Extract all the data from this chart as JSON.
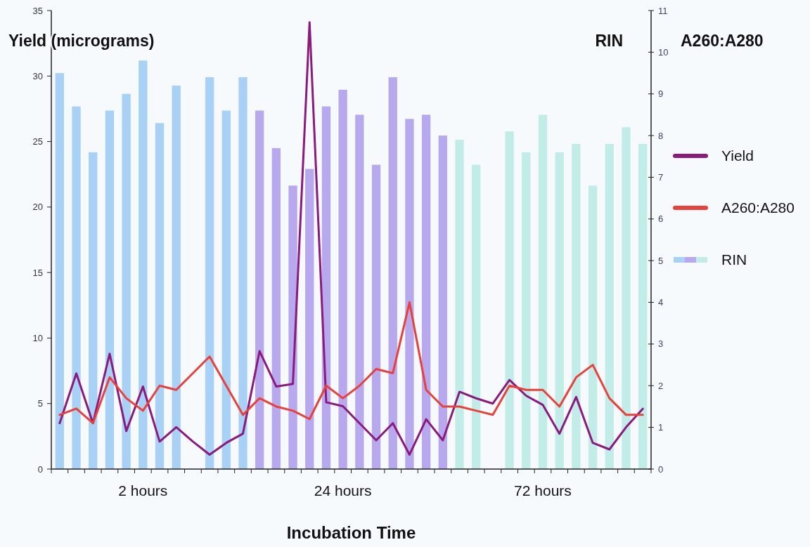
{
  "chart_data": {
    "type": "bar",
    "ylabel": "Yield (micrograms)",
    "y2label": "RIN",
    "xlabel": "Incubation Time",
    "annotations": [
      "A260:A280"
    ],
    "categories": [
      null,
      null,
      null,
      null,
      null,
      "2 hours",
      null,
      null,
      null,
      null,
      null,
      null,
      null,
      null,
      null,
      null,
      null,
      "24 hours",
      null,
      null,
      null,
      null,
      null,
      null,
      null,
      null,
      null,
      null,
      null,
      "72 hours",
      null,
      null,
      null,
      null,
      null,
      null
    ],
    "series": [
      {
        "name": "RIN",
        "axis": "y2",
        "colors": [
          "#a9d0f5",
          "#a9d0f5",
          "#a9d0f5",
          "#a9d0f5",
          "#a9d0f5",
          "#a9d0f5",
          "#a9d0f5",
          "#a9d0f5",
          "#a9d0f5",
          "#a9d0f5",
          "#a9d0f5",
          "#a9d0f5",
          "#b8a8ee",
          "#b8a8ee",
          "#b8a8ee",
          "#b8a8ee",
          "#b8a8ee",
          "#b8a8ee",
          "#b8a8ee",
          "#b8a8ee",
          "#b8a8ee",
          "#b8a8ee",
          "#b8a8ee",
          "#b8a8ee",
          "#c2ece8",
          "#c2ece8",
          "#c2ece8",
          "#c2ece8",
          "#c2ece8",
          "#c2ece8",
          "#c2ece8",
          "#c2ece8",
          "#c2ece8",
          "#c2ece8",
          "#c2ece8",
          "#c2ece8"
        ],
        "values": [
          9.5,
          8.7,
          7.6,
          8.6,
          9.0,
          9.8,
          8.3,
          9.2,
          null,
          9.4,
          8.6,
          9.4,
          8.6,
          7.7,
          6.8,
          7.2,
          8.7,
          9.1,
          8.5,
          7.3,
          9.4,
          8.4,
          8.5,
          8.0,
          7.9,
          7.3,
          null,
          8.1,
          7.6,
          8.5,
          7.6,
          7.8,
          6.8,
          7.8,
          8.2,
          7.8
        ]
      },
      {
        "name": "Yield",
        "type": "line",
        "color": "#8b1a7e",
        "values": [
          3.5,
          7.3,
          3.5,
          8.8,
          2.9,
          6.3,
          2.1,
          3.2,
          2.1,
          1.1,
          2.0,
          2.7,
          9.0,
          6.3,
          6.5,
          34.1,
          5.1,
          4.8,
          3.5,
          2.2,
          3.5,
          1.1,
          3.8,
          2.2,
          5.9,
          5.4,
          5.0,
          6.8,
          5.6,
          4.9,
          2.7,
          5.5,
          2.0,
          1.5,
          3.2,
          4.6
        ]
      },
      {
        "name": "A260:A280",
        "type": "line",
        "axis": "y2",
        "color": "#e8413c",
        "values": [
          1.3,
          1.45,
          1.1,
          2.2,
          1.7,
          1.4,
          2.0,
          1.9,
          2.3,
          2.7,
          2.0,
          1.3,
          1.7,
          1.5,
          1.4,
          1.2,
          2.0,
          1.7,
          2.0,
          2.4,
          2.3,
          4.0,
          1.9,
          1.5,
          1.5,
          1.4,
          1.3,
          2.0,
          1.9,
          1.9,
          1.5,
          2.2,
          2.5,
          1.7,
          1.3,
          1.3
        ]
      }
    ],
    "ylim": [
      0,
      35
    ],
    "yticks": [
      0,
      5,
      10,
      15,
      20,
      25,
      30,
      35
    ],
    "y2lim": [
      0,
      11
    ],
    "y2ticks": [
      0,
      1,
      2,
      3,
      4,
      5,
      6,
      7,
      8,
      9,
      10,
      11
    ],
    "legend": "right"
  }
}
